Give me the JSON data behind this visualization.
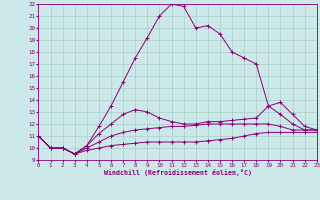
{
  "xlabel": "Windchill (Refroidissement éolien,°C)",
  "bg_color": "#cde8e8",
  "grid_color": "#a0c8c0",
  "line_color": "#880077",
  "xlim": [
    0,
    23
  ],
  "ylim": [
    9,
    22
  ],
  "xticks": [
    0,
    1,
    2,
    3,
    4,
    5,
    6,
    7,
    8,
    9,
    10,
    11,
    12,
    13,
    14,
    15,
    16,
    17,
    18,
    19,
    20,
    21,
    22,
    23
  ],
  "yticks": [
    9,
    10,
    11,
    12,
    13,
    14,
    15,
    16,
    17,
    18,
    19,
    20,
    21,
    22
  ],
  "series": [
    [
      11,
      10,
      10,
      9.5,
      10.2,
      11.8,
      13.5,
      15.5,
      17.5,
      19.2,
      21.0,
      22.0,
      21.8,
      20.0,
      20.2,
      19.5,
      18.0,
      17.5,
      17.0,
      13.5,
      12.8,
      12.0,
      11.5,
      11.5
    ],
    [
      11,
      10,
      10,
      9.5,
      10.2,
      11.2,
      12.0,
      12.8,
      13.2,
      13.0,
      12.5,
      12.2,
      12.0,
      12.0,
      12.2,
      12.2,
      12.3,
      12.4,
      12.5,
      13.5,
      13.8,
      12.8,
      11.8,
      11.5
    ],
    [
      11,
      10,
      10,
      9.5,
      10.0,
      10.5,
      11.0,
      11.3,
      11.5,
      11.6,
      11.7,
      11.8,
      11.8,
      11.9,
      12.0,
      12.0,
      12.0,
      12.0,
      12.0,
      12.0,
      11.8,
      11.5,
      11.5,
      11.5
    ],
    [
      11,
      10,
      10,
      9.5,
      9.8,
      10.0,
      10.2,
      10.3,
      10.4,
      10.5,
      10.5,
      10.5,
      10.5,
      10.5,
      10.6,
      10.7,
      10.8,
      11.0,
      11.2,
      11.3,
      11.3,
      11.3,
      11.3,
      11.3
    ]
  ]
}
